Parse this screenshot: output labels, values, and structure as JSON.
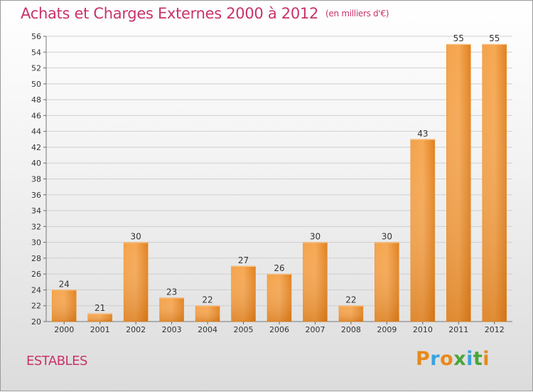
{
  "header": {
    "title": "Achats et Charges Externes 2000 à 2012",
    "unit": "(en milliers d'€)"
  },
  "footer": {
    "commune": "ESTABLES",
    "logo_text": "Proxiti",
    "logo_colors": [
      "#e8891b",
      "#3aa3dc",
      "#e8891b",
      "#4aa53a",
      "#3aa3dc",
      "#4aa53a",
      "#e8891b"
    ]
  },
  "colors": {
    "accent": "#c8336a",
    "bar_light": "#f7a64e",
    "bar_dark": "#d86f0f",
    "grid": "#cfcfcf"
  },
  "chart_data": {
    "type": "bar",
    "title": "Achats et Charges Externes 2000 à 2012",
    "subtitle": "(en milliers d'€)",
    "categories": [
      "2000",
      "2001",
      "2002",
      "2003",
      "2004",
      "2005",
      "2006",
      "2007",
      "2008",
      "2009",
      "2010",
      "2011",
      "2012"
    ],
    "values": [
      24,
      21,
      30,
      23,
      22,
      27,
      26,
      30,
      22,
      30,
      43,
      55,
      55
    ],
    "data_labels": [
      "24",
      "21",
      "30",
      "23",
      "22",
      "27",
      "26",
      "30",
      "22",
      "30",
      "43",
      "55",
      "55"
    ],
    "ylim": [
      20,
      56
    ],
    "y_ticks": [
      "20",
      "22",
      "24",
      "26",
      "28",
      "30",
      "32",
      "34",
      "36",
      "38",
      "40",
      "42",
      "44",
      "46",
      "48",
      "50",
      "52",
      "54",
      "56"
    ],
    "grid": true,
    "legend": "none"
  }
}
